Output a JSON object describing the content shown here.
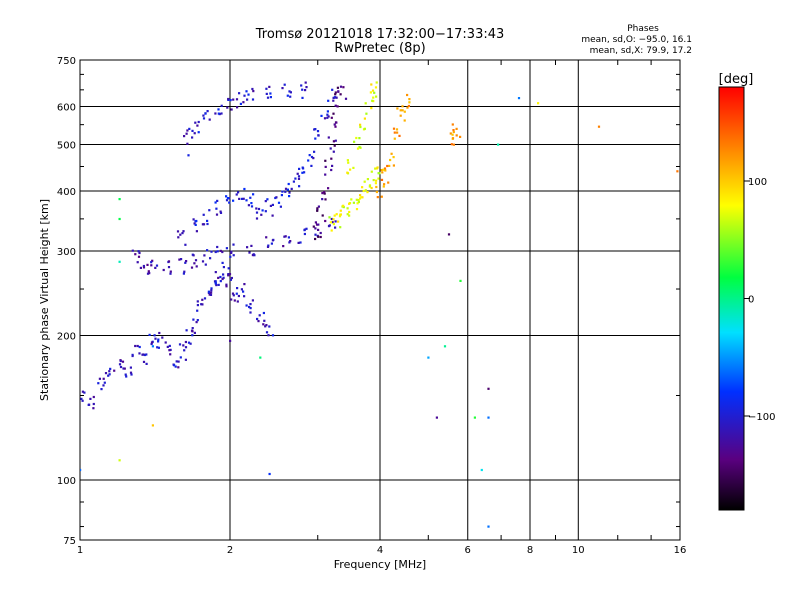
{
  "chart_data": {
    "type": "scatter",
    "title": "Tromsø 20121018 17:32:00−17:33:43",
    "subtitle": "RwPretec (8p)",
    "xlabel": "Frequency [MHz]",
    "ylabel": "Stationary phase Virtual Height [km]",
    "x_scale": "log",
    "y_scale": "log",
    "xlim": [
      1,
      16
    ],
    "ylim": [
      75,
      750
    ],
    "x_ticks": [
      1,
      2,
      4,
      6,
      8,
      10,
      16
    ],
    "x_tick_labels": [
      "1",
      "2",
      "4",
      "6",
      "8",
      "10",
      "16"
    ],
    "y_ticks": [
      75,
      100,
      200,
      300,
      400,
      500,
      600,
      750
    ],
    "y_tick_labels": [
      "75",
      "100",
      "200",
      "300",
      "400",
      "500",
      "600",
      "750"
    ],
    "grid": true,
    "phases_box": {
      "title": "Phases",
      "line_o": "mean, sd,O: −95.0, 16.1",
      "line_x": "mean, sd,X:  79.9, 17.2"
    },
    "colorbar": {
      "label": "[deg]",
      "range": [
        -180,
        180
      ],
      "ticks": [
        100,
        0,
        -100
      ],
      "tick_labels": [
        "100",
        "0",
        "−100"
      ],
      "colormap": "rainbow (black → violet → blue → cyan → green → yellow → orange → red)"
    },
    "traces": [
      {
        "name": "o-trace-low-F",
        "points": [
          [
            1.0,
            150
          ],
          [
            1.05,
            145
          ],
          [
            1.1,
            160
          ],
          [
            1.15,
            170
          ],
          [
            1.2,
            175
          ],
          [
            1.25,
            165
          ],
          [
            1.3,
            185
          ],
          [
            1.35,
            180
          ],
          [
            1.4,
            200
          ],
          [
            1.45,
            195
          ],
          [
            1.5,
            190
          ],
          [
            1.55,
            175
          ],
          [
            1.6,
            185
          ],
          [
            1.65,
            200
          ],
          [
            1.7,
            210
          ],
          [
            1.75,
            230
          ],
          [
            1.8,
            245
          ],
          [
            1.85,
            255
          ],
          [
            1.9,
            265
          ],
          [
            1.95,
            270
          ],
          [
            2.0,
            260
          ],
          [
            2.05,
            245
          ],
          [
            2.1,
            250
          ],
          [
            2.2,
            230
          ],
          [
            2.3,
            215
          ],
          [
            2.4,
            205
          ]
        ],
        "phase": -110
      },
      {
        "name": "o-trace-F-lower-edge",
        "points": [
          [
            1.3,
            290
          ],
          [
            1.35,
            280
          ],
          [
            1.4,
            278
          ],
          [
            1.5,
            278
          ],
          [
            1.6,
            280
          ],
          [
            1.7,
            285
          ],
          [
            1.8,
            290
          ],
          [
            1.9,
            295
          ],
          [
            2.0,
            300
          ],
          [
            2.2,
            305
          ],
          [
            2.4,
            310
          ],
          [
            2.6,
            318
          ],
          [
            2.8,
            325
          ],
          [
            3.0,
            335
          ],
          [
            3.2,
            345
          ]
        ],
        "phase": -115
      },
      {
        "name": "o-trace-F-body",
        "points": [
          [
            1.6,
            320
          ],
          [
            1.7,
            340
          ],
          [
            1.8,
            355
          ],
          [
            1.9,
            370
          ],
          [
            2.0,
            385
          ],
          [
            2.1,
            395
          ],
          [
            2.2,
            380
          ],
          [
            2.3,
            360
          ],
          [
            2.4,
            370
          ],
          [
            2.5,
            385
          ],
          [
            2.6,
            400
          ],
          [
            2.7,
            420
          ],
          [
            2.8,
            440
          ],
          [
            2.9,
            470
          ],
          [
            3.0,
            520
          ],
          [
            3.1,
            580
          ],
          [
            3.2,
            630
          ]
        ],
        "phase": -100
      },
      {
        "name": "o-trace-upper-cluster",
        "points": [
          [
            1.65,
            520
          ],
          [
            1.7,
            540
          ],
          [
            1.8,
            570
          ],
          [
            1.9,
            585
          ],
          [
            2.0,
            600
          ],
          [
            2.1,
            620
          ],
          [
            2.2,
            640
          ],
          [
            2.4,
            650
          ],
          [
            2.6,
            655
          ],
          [
            2.8,
            650
          ]
        ],
        "phase": -105
      },
      {
        "name": "o-trace-violet-band",
        "points": [
          [
            3.0,
            330
          ],
          [
            3.05,
            360
          ],
          [
            3.1,
            400
          ],
          [
            3.15,
            450
          ],
          [
            3.2,
            500
          ],
          [
            3.25,
            560
          ],
          [
            3.3,
            620
          ],
          [
            3.35,
            640
          ]
        ],
        "phase": -135
      },
      {
        "name": "x-trace-yellow",
        "points": [
          [
            3.2,
            345
          ],
          [
            3.3,
            350
          ],
          [
            3.4,
            360
          ],
          [
            3.5,
            370
          ],
          [
            3.6,
            380
          ],
          [
            3.7,
            395
          ],
          [
            3.8,
            410
          ],
          [
            3.9,
            430
          ],
          [
            4.0,
            450
          ],
          [
            3.5,
            450
          ],
          [
            3.6,
            500
          ],
          [
            3.7,
            560
          ],
          [
            3.8,
            620
          ],
          [
            3.9,
            650
          ]
        ],
        "phase": 75
      },
      {
        "name": "x-trace-orange",
        "points": [
          [
            4.0,
            400
          ],
          [
            4.1,
            430
          ],
          [
            4.2,
            470
          ],
          [
            4.3,
            520
          ],
          [
            4.4,
            580
          ],
          [
            4.5,
            620
          ],
          [
            5.6,
            520
          ],
          [
            5.7,
            530
          ]
        ],
        "phase": 120
      },
      {
        "name": "scattered-noise",
        "points": [
          [
            1.0,
            105
          ],
          [
            1.2,
            110
          ],
          [
            1.4,
            130
          ],
          [
            1.2,
            285
          ],
          [
            1.2,
            350
          ],
          [
            1.2,
            385
          ],
          [
            1.4,
            190
          ],
          [
            1.65,
            475
          ],
          [
            2.0,
            195
          ],
          [
            2.3,
            180
          ],
          [
            2.4,
            103
          ],
          [
            5.0,
            180
          ],
          [
            5.2,
            135
          ],
          [
            5.4,
            190
          ],
          [
            5.5,
            325
          ],
          [
            5.8,
            260
          ],
          [
            6.2,
            135
          ],
          [
            6.4,
            105
          ],
          [
            6.6,
            155
          ],
          [
            6.6,
            135
          ],
          [
            6.9,
            500
          ],
          [
            6.6,
            80
          ],
          [
            7.6,
            625
          ],
          [
            8.3,
            610
          ],
          [
            11.0,
            545
          ],
          [
            15.8,
            440
          ]
        ],
        "phase": 0
      }
    ]
  }
}
